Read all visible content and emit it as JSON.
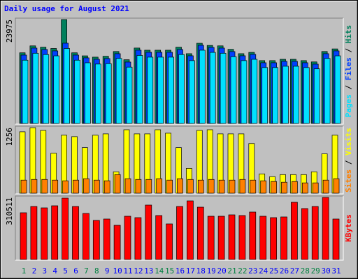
{
  "chart_data": [
    {
      "type": "bar",
      "title": "Daily usage for August 2021",
      "title_color": "#0000ff",
      "legend_separator": " / ",
      "ylim": [
        0,
        23975
      ],
      "yticks": [
        23975
      ],
      "series": [
        {
          "name": "Hits",
          "color": "#00805c",
          "values": [
            16300,
            17900,
            17600,
            17300,
            23975,
            16300,
            15600,
            15300,
            15500,
            16600,
            14700,
            17400,
            16900,
            16900,
            16900,
            17600,
            16100,
            18500,
            18000,
            17900,
            17100,
            16100,
            16400,
            14500,
            14500,
            14800,
            14800,
            14500,
            14200,
            16600,
            17200
          ]
        },
        {
          "name": "Files",
          "color": "#0040ff",
          "values": [
            15778,
            17388,
            17066,
            16744,
            18515,
            15778,
            15134,
            14812,
            14973,
            16100,
            14168,
            16905,
            16422,
            16422,
            16422,
            17066,
            15617,
            18032,
            17549,
            17388,
            16583,
            15617,
            15939,
            14007,
            14007,
            14329,
            14329,
            14007,
            13685,
            16100,
            16744
          ]
        },
        {
          "name": "Pages",
          "color": "#00e0ff",
          "values": [
            14600,
            16200,
            15900,
            15600,
            17300,
            14600,
            14000,
            13700,
            13800,
            15000,
            13000,
            15700,
            15300,
            15300,
            15300,
            15900,
            14500,
            16900,
            16400,
            16200,
            15400,
            14500,
            14800,
            12900,
            12900,
            13200,
            13200,
            12900,
            12600,
            15000,
            15600
          ]
        }
      ]
    },
    {
      "type": "bar",
      "legend_separator": " / ",
      "ylim": [
        0,
        1256
      ],
      "yticks": [
        1256
      ],
      "series": [
        {
          "name": "Visits",
          "color": "#ffff00",
          "values": [
            1177,
            1256,
            1203,
            767,
            1111,
            1084,
            873,
            1111,
            1137,
            410,
            1216,
            1137,
            1137,
            1216,
            1150,
            873,
            476,
            1203,
            1216,
            1137,
            1137,
            1137,
            952,
            370,
            317,
            357,
            357,
            357,
            410,
            754,
            1111
          ]
        },
        {
          "name": "Sites",
          "color": "#ff8000",
          "values": [
            251,
            264,
            264,
            251,
            238,
            251,
            278,
            251,
            238,
            357,
            278,
            264,
            264,
            278,
            251,
            278,
            264,
            251,
            264,
            251,
            251,
            264,
            251,
            238,
            225,
            211,
            225,
            198,
            198,
            251,
            278
          ]
        }
      ]
    },
    {
      "type": "bar",
      "ylim": [
        0,
        310511
      ],
      "yticks": [
        310511
      ],
      "categories": [
        "1",
        "2",
        "3",
        "4",
        "5",
        "6",
        "7",
        "8",
        "9",
        "10",
        "11",
        "12",
        "13",
        "14",
        "15",
        "16",
        "17",
        "18",
        "19",
        "20",
        "21",
        "22",
        "23",
        "24",
        "25",
        "26",
        "27",
        "28",
        "29",
        "30",
        "31"
      ],
      "category_colors": [
        "#008040",
        "#0000ff",
        "#0000ff",
        "#0000ff",
        "#0000ff",
        "#0000ff",
        "#008040",
        "#008040",
        "#0000ff",
        "#0000ff",
        "#0000ff",
        "#0000ff",
        "#0000ff",
        "#008040",
        "#008040",
        "#0000ff",
        "#0000ff",
        "#0000ff",
        "#0000ff",
        "#0000ff",
        "#008040",
        "#008040",
        "#0000ff",
        "#0000ff",
        "#0000ff",
        "#0000ff",
        "#0000ff",
        "#008040",
        "#008040",
        "#0000ff",
        "#0000ff"
      ],
      "series": [
        {
          "name": "KBytes",
          "color": "#ff0000",
          "values": [
            233763,
            265164,
            258186,
            268653,
            307032,
            265164,
            230274,
            195384,
            202362,
            170961,
            216318,
            209340,
            272142,
            219807,
            177939,
            265164,
            293076,
            261675,
            216318,
            216318,
            223296,
            219807,
            237252,
            216318,
            209340,
            212829,
            286098,
            254697,
            265164,
            310511,
            202362
          ]
        }
      ]
    }
  ]
}
